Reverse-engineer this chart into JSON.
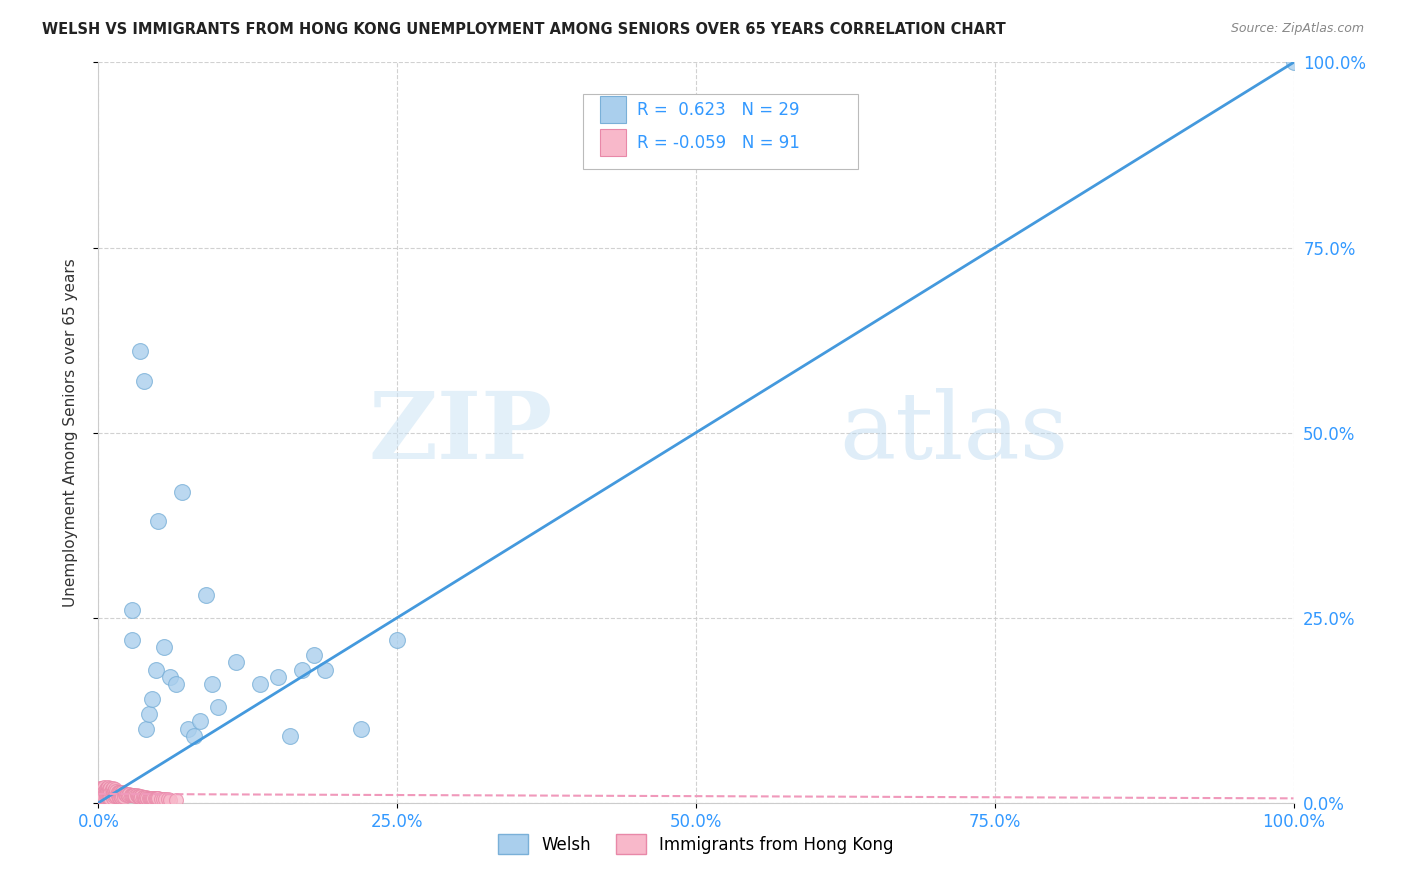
{
  "title": "WELSH VS IMMIGRANTS FROM HONG KONG UNEMPLOYMENT AMONG SENIORS OVER 65 YEARS CORRELATION CHART",
  "source": "Source: ZipAtlas.com",
  "ylabel": "Unemployment Among Seniors over 65 years",
  "xlim": [
    0.0,
    1.0
  ],
  "ylim": [
    0.0,
    1.0
  ],
  "xticks": [
    0.0,
    0.25,
    0.5,
    0.75,
    1.0
  ],
  "yticks": [
    0.0,
    0.25,
    0.5,
    0.75,
    1.0
  ],
  "xticklabels": [
    "0.0%",
    "25.0%",
    "50.0%",
    "75.0%",
    "100.0%"
  ],
  "yticklabels": [
    "0.0%",
    "25.0%",
    "50.0%",
    "75.0%",
    "100.0%"
  ],
  "welsh_color": "#aacfed",
  "welsh_edge_color": "#7ab0d8",
  "hk_color": "#f8b8ca",
  "hk_edge_color": "#e888a8",
  "welsh_line_color": "#4499dd",
  "hk_line_color": "#f099bb",
  "welsh_R": 0.623,
  "welsh_N": 29,
  "hk_R": -0.059,
  "hk_N": 91,
  "background_color": "#ffffff",
  "grid_color": "#cccccc",
  "axis_color": "#3399ff",
  "watermark_zip": "ZIP",
  "watermark_atlas": "atlas",
  "welsh_line_x": [
    0.0,
    1.0
  ],
  "welsh_line_y": [
    0.0,
    1.0
  ],
  "hk_line_x": [
    0.0,
    1.0
  ],
  "hk_line_y": [
    0.012,
    0.006
  ],
  "welsh_scatter_x": [
    0.028,
    0.028,
    0.035,
    0.038,
    0.04,
    0.042,
    0.045,
    0.048,
    0.05,
    0.055,
    0.06,
    0.065,
    0.07,
    0.075,
    0.08,
    0.085,
    0.09,
    0.095,
    0.1,
    0.115,
    0.135,
    0.15,
    0.16,
    0.17,
    0.18,
    0.19,
    0.22,
    0.25,
    1.0
  ],
  "welsh_scatter_y": [
    0.26,
    0.22,
    0.61,
    0.57,
    0.1,
    0.12,
    0.14,
    0.18,
    0.38,
    0.21,
    0.17,
    0.16,
    0.42,
    0.1,
    0.09,
    0.11,
    0.28,
    0.16,
    0.13,
    0.19,
    0.16,
    0.17,
    0.09,
    0.18,
    0.2,
    0.18,
    0.1,
    0.22,
    1.0
  ],
  "hk_scatter_x": [
    0.0,
    0.0,
    0.001,
    0.001,
    0.001,
    0.002,
    0.002,
    0.002,
    0.003,
    0.003,
    0.003,
    0.004,
    0.004,
    0.004,
    0.005,
    0.005,
    0.005,
    0.005,
    0.006,
    0.006,
    0.006,
    0.007,
    0.007,
    0.007,
    0.008,
    0.008,
    0.008,
    0.009,
    0.009,
    0.009,
    0.01,
    0.01,
    0.01,
    0.011,
    0.011,
    0.012,
    0.012,
    0.012,
    0.013,
    0.013,
    0.014,
    0.014,
    0.015,
    0.015,
    0.016,
    0.016,
    0.017,
    0.017,
    0.018,
    0.018,
    0.019,
    0.019,
    0.02,
    0.02,
    0.021,
    0.021,
    0.022,
    0.023,
    0.024,
    0.025,
    0.026,
    0.027,
    0.028,
    0.029,
    0.03,
    0.031,
    0.032,
    0.033,
    0.034,
    0.035,
    0.036,
    0.037,
    0.038,
    0.039,
    0.04,
    0.041,
    0.042,
    0.043,
    0.044,
    0.045,
    0.046,
    0.047,
    0.048,
    0.049,
    0.05,
    0.052,
    0.054,
    0.056,
    0.058,
    0.06,
    0.065
  ],
  "hk_scatter_y": [
    0.01,
    0.015,
    0.02,
    0.01,
    0.008,
    0.015,
    0.01,
    0.008,
    0.02,
    0.012,
    0.008,
    0.018,
    0.012,
    0.008,
    0.022,
    0.015,
    0.01,
    0.008,
    0.018,
    0.012,
    0.008,
    0.02,
    0.014,
    0.008,
    0.022,
    0.015,
    0.008,
    0.018,
    0.012,
    0.007,
    0.02,
    0.013,
    0.007,
    0.018,
    0.01,
    0.02,
    0.013,
    0.007,
    0.016,
    0.009,
    0.018,
    0.01,
    0.016,
    0.009,
    0.015,
    0.009,
    0.014,
    0.008,
    0.015,
    0.009,
    0.013,
    0.008,
    0.014,
    0.009,
    0.013,
    0.008,
    0.012,
    0.011,
    0.012,
    0.011,
    0.012,
    0.01,
    0.011,
    0.01,
    0.01,
    0.009,
    0.01,
    0.009,
    0.009,
    0.008,
    0.009,
    0.008,
    0.008,
    0.007,
    0.008,
    0.007,
    0.007,
    0.007,
    0.007,
    0.006,
    0.007,
    0.006,
    0.006,
    0.006,
    0.006,
    0.005,
    0.005,
    0.005,
    0.005,
    0.004,
    0.004
  ]
}
